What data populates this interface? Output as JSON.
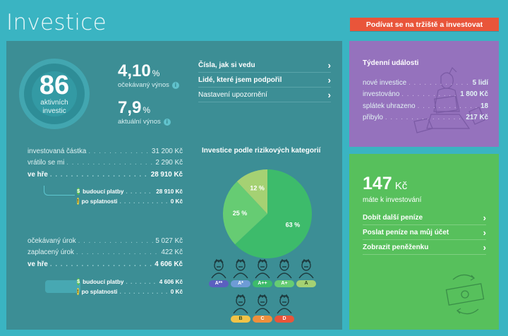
{
  "header": {
    "title": "Investice",
    "invest_button": "Podívat se na tržiště a investovat"
  },
  "summary": {
    "active_count": "86",
    "active_label_line1": "aktivních",
    "active_label_line2": "investic",
    "expected_yield": {
      "value": "4,10",
      "unit": "%",
      "label": "očekávaný výnos"
    },
    "current_yield": {
      "value": "7,9",
      "unit": "%",
      "label": "aktuální výnos"
    }
  },
  "links": [
    {
      "label": "Čísla, jak si vedu"
    },
    {
      "label": "Lidé, které jsem podpořil"
    },
    {
      "label": "Nastavení upozornění"
    }
  ],
  "principal": {
    "rows": [
      {
        "label": "investovaná částka",
        "value": "31 200 Kč"
      },
      {
        "label": "vrátilo se mi",
        "value": "2 290 Kč"
      },
      {
        "label": "ve hře",
        "value": "28 910 Kč"
      }
    ],
    "sub": [
      {
        "label": "budoucí platby",
        "value": "28 910 Kč",
        "icon": "$"
      },
      {
        "label": "po splatnosti",
        "value": "0 Kč",
        "icon": "!"
      }
    ]
  },
  "interest": {
    "rows": [
      {
        "label": "očekávaný úrok",
        "value": "5 027 Kč"
      },
      {
        "label": "zaplacený úrok",
        "value": "422 Kč"
      },
      {
        "label": "ve hře",
        "value": "4 606 Kč"
      }
    ],
    "sub": [
      {
        "label": "budoucí platby",
        "value": "4 606 Kč",
        "icon": "$"
      },
      {
        "label": "po splatnosti",
        "value": "0 Kč",
        "icon": "!"
      }
    ]
  },
  "chart_data": {
    "type": "pie",
    "title": "Investice podle rizikových kategorií",
    "slices": [
      {
        "label": "63 %",
        "value": 63,
        "color": "#3dbb6b"
      },
      {
        "label": "25 %",
        "value": 25,
        "color": "#66cc73"
      },
      {
        "label": "12 %",
        "value": 12,
        "color": "#a5d173"
      }
    ]
  },
  "ratings": [
    {
      "label": "A**",
      "color": "#5b5fc0"
    },
    {
      "label": "A*",
      "color": "#6e9bd6"
    },
    {
      "label": "A++",
      "color": "#3dbb6b"
    },
    {
      "label": "A+",
      "color": "#66cc73"
    },
    {
      "label": "A",
      "color": "#a5d173"
    },
    {
      "label": "B",
      "color": "#f2c347"
    },
    {
      "label": "C",
      "color": "#ee8f3c"
    },
    {
      "label": "D",
      "color": "#e9553a"
    }
  ],
  "weekly": {
    "title": "Týdenní události",
    "rows": [
      {
        "label": "nové investice",
        "value": "5 lidí"
      },
      {
        "label": "investováno",
        "value": "1 800 Kč"
      },
      {
        "label": "splátek uhrazeno",
        "value": "18"
      },
      {
        "label": "přibylo",
        "value": "217 Kč"
      }
    ]
  },
  "balance": {
    "value": "147",
    "currency": "Kč",
    "label": "máte k investování",
    "links": [
      {
        "label": "Dobít další peníze"
      },
      {
        "label": "Poslat peníze na můj účet"
      },
      {
        "label": "Zobrazit peněženku"
      }
    ]
  },
  "icons": {
    "chevron": "›",
    "info": "i"
  }
}
